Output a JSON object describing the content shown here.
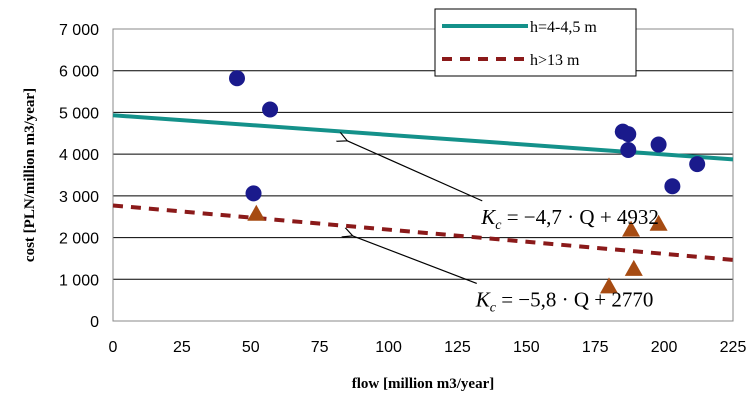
{
  "chart_data": {
    "type": "scatter",
    "xlabel": "flow [million m3/year]",
    "ylabel": "cost [PLN/million m3/year]",
    "xlim": [
      0,
      225
    ],
    "ylim": [
      0,
      7000
    ],
    "x_ticks": [
      0,
      25,
      50,
      75,
      100,
      125,
      150,
      175,
      200,
      225
    ],
    "x_tick_labels": [
      "0",
      "25",
      "50",
      "75",
      "100",
      "125",
      "150",
      "175",
      "200",
      "225"
    ],
    "y_ticks": [
      0,
      1000,
      2000,
      3000,
      4000,
      5000,
      6000,
      7000
    ],
    "y_tick_labels": [
      "0",
      "1 000",
      "2 000",
      "3 000",
      "4 000",
      "5 000",
      "6 000",
      "7 000"
    ],
    "grid": "horizontal",
    "legend_position": "top-right",
    "series": [
      {
        "kind": "scatter",
        "marker": "circle",
        "color": "#1a1a8c",
        "x": [
          45,
          51,
          57,
          185,
          187,
          187,
          198,
          203,
          212
        ],
        "y": [
          5820,
          3060,
          5070,
          4540,
          4480,
          4100,
          4230,
          3230,
          3760
        ]
      },
      {
        "kind": "scatter",
        "marker": "triangle",
        "color": "#a64b12",
        "x": [
          52,
          180,
          188,
          189,
          198
        ],
        "y": [
          2570,
          830,
          2190,
          1250,
          2330
        ]
      },
      {
        "kind": "line",
        "name": "h=4-4,5 m",
        "color": "#14918a",
        "style": "solid",
        "x": [
          0,
          225
        ],
        "y": [
          4932,
          3875
        ]
      },
      {
        "kind": "line",
        "name": "h>13 m",
        "color": "#8b1a1a",
        "style": "dashed",
        "x": [
          0,
          225
        ],
        "y": [
          2770,
          1465
        ]
      }
    ],
    "annotations": [
      {
        "var": "K",
        "sub": "c",
        "rest": " = −4,7 · Q + 4932",
        "arrow_from": [
          134,
          2880
        ],
        "arrow_to": [
          85,
          4320
        ]
      },
      {
        "var": "K",
        "sub": "c",
        "rest": " = −5,8 · Q + 2770",
        "arrow_from": [
          132,
          900
        ],
        "arrow_to": [
          87,
          2040
        ]
      }
    ]
  }
}
